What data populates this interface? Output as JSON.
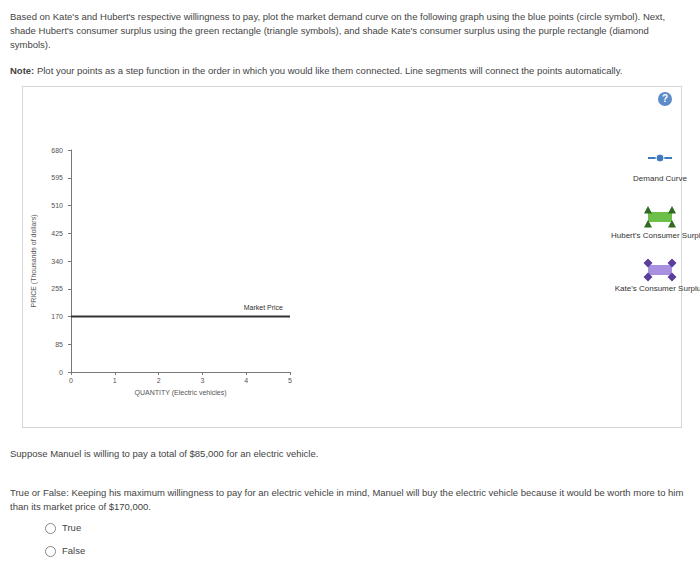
{
  "instructions": "Based on Kate's and Hubert's respective willingness to pay, plot the market demand curve on the following graph using the blue points (circle symbol). Next, shade Hubert's consumer surplus using the green rectangle (triangle symbols), and shade Kate's consumer surplus using the purple rectangle (diamond symbols).",
  "note_label": "Note:",
  "note": "Plot your points as a step function in the order in which you would like them connected. Line segments will connect the points automatically.",
  "help_icon": "?",
  "chart_data": {
    "type": "line",
    "x": [
      0,
      5
    ],
    "series": [
      {
        "name": "Market Price",
        "color": "#333333",
        "values": [
          170,
          170
        ]
      }
    ],
    "xlabel": "QUANTITY (Electric vehicles)",
    "ylabel": "PRICE (Thousands of dollars)",
    "xlim": [
      0,
      5
    ],
    "xticks": [
      0,
      1,
      2,
      3,
      4,
      5
    ],
    "ylim": [
      0,
      680
    ],
    "yticks": [
      0,
      85,
      170,
      255,
      340,
      425,
      510,
      595,
      680
    ],
    "grid": false
  },
  "palette": [
    {
      "label": "Demand Curve",
      "color": "#3f79c0",
      "marker": "circle"
    },
    {
      "label": "Hubert's Consumer Surplus",
      "color": "#6cc04a",
      "marker": "triangle"
    },
    {
      "label": "Kate's Consumer Surplus",
      "color": "#a98fe0",
      "marker": "diamond"
    }
  ],
  "question_intro": "Suppose Manuel is willing to pay a total of $85,000 for an electric vehicle.",
  "question": "True or False: Keeping his maximum willingness to pay for an electric vehicle in mind, Manuel will buy the electric vehicle because it would be worth more to him than its market price of $170,000.",
  "options": [
    "True",
    "False"
  ]
}
